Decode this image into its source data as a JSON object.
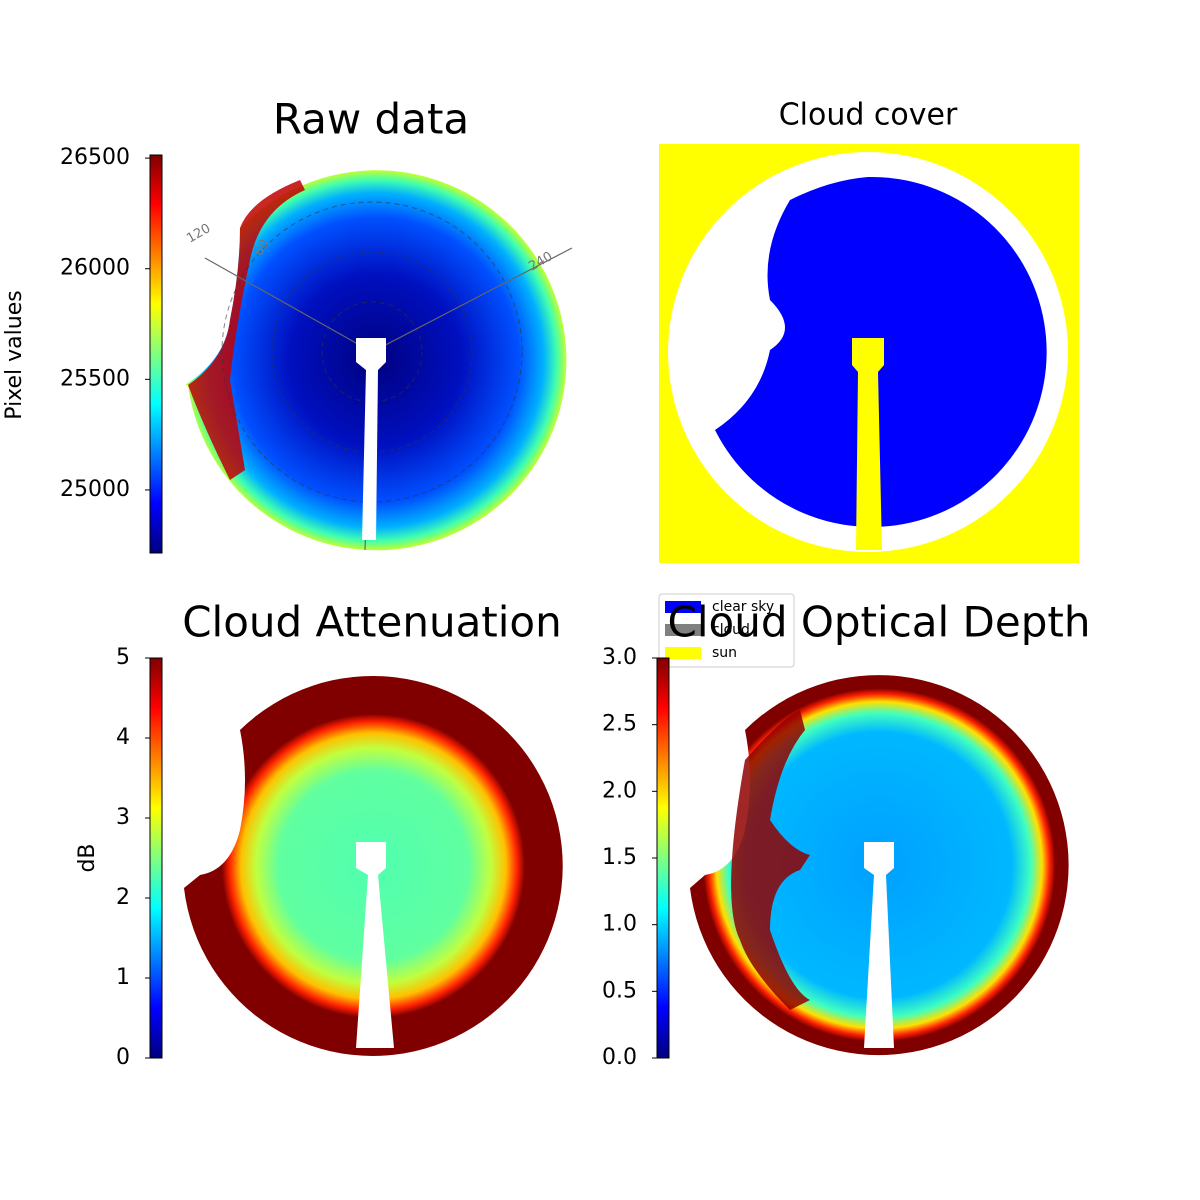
{
  "chart_data": [
    {
      "type": "image",
      "title": "Raw data",
      "ylabel": "Pixel values",
      "colormap": "jet",
      "ylim": [
        24715,
        26514
      ],
      "yticks": [
        25000,
        25500,
        26000,
        26500
      ],
      "annotations": [
        "120",
        "60",
        "240"
      ]
    },
    {
      "type": "image",
      "title": "Cloud cover",
      "legend_entries": [
        {
          "label": "clear sky",
          "color": "#0000ff"
        },
        {
          "label": "cloud",
          "color": "#808080"
        },
        {
          "label": "sun",
          "color": "#ffff00"
        }
      ]
    },
    {
      "type": "image",
      "title": "Cloud Attenuation",
      "ylabel": "dB",
      "colormap": "jet",
      "ylim": [
        0,
        5
      ],
      "yticks": [
        0,
        1,
        2,
        3,
        4,
        5
      ]
    },
    {
      "type": "image",
      "title": "Cloud Optical Depth",
      "colormap": "jet",
      "ylim": [
        0,
        3
      ],
      "yticks": [
        {
          "value": 0,
          "label": "0.0"
        },
        0.5,
        {
          "value": 1,
          "label": "1.0"
        },
        1.5,
        {
          "value": 2,
          "label": "2.0"
        },
        2.5,
        {
          "value": 3,
          "label": "3.0"
        }
      ]
    }
  ]
}
